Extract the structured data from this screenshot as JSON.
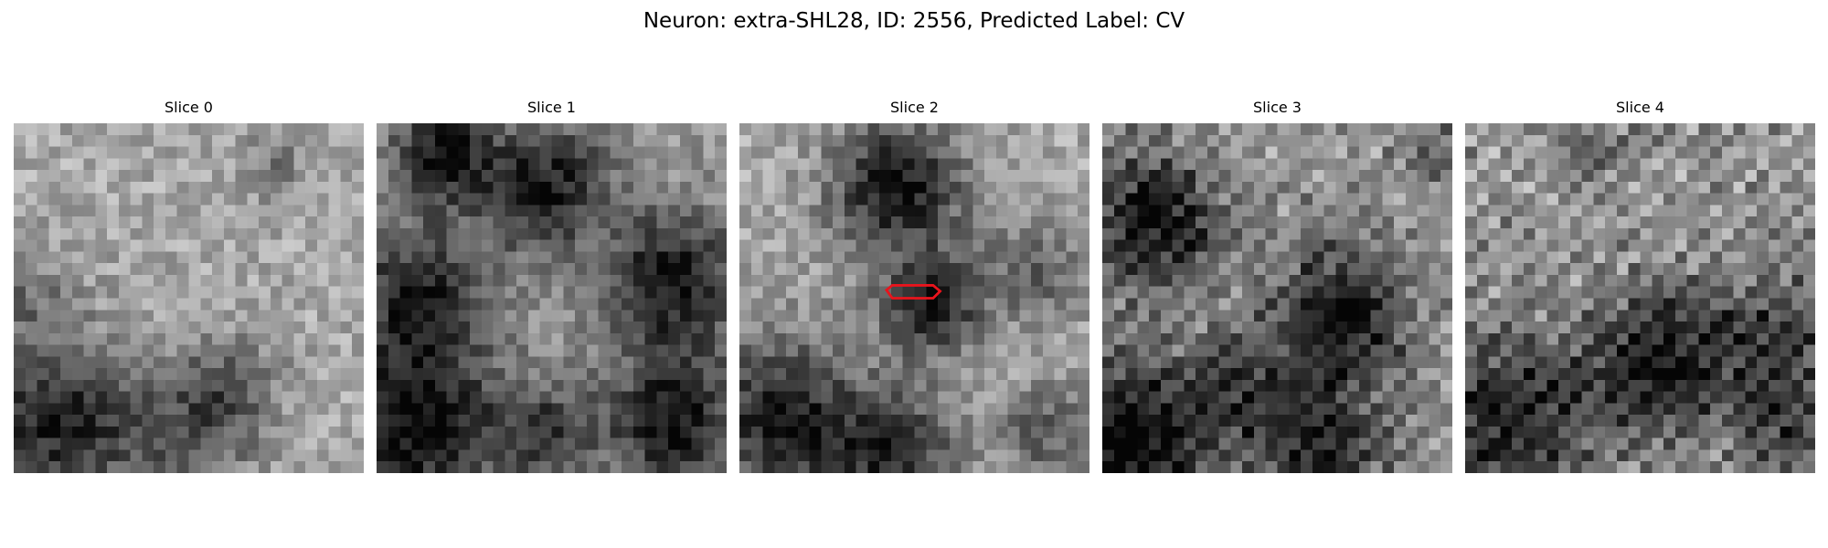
{
  "figure": {
    "title": "Neuron: extra-SHL28, ID: 2556, Predicted Label: CV"
  },
  "slices": [
    {
      "label": "Slice 0",
      "has_contour": false
    },
    {
      "label": "Slice 1",
      "has_contour": false
    },
    {
      "label": "Slice 2",
      "has_contour": true
    },
    {
      "label": "Slice 3",
      "has_contour": false
    },
    {
      "label": "Slice 4",
      "has_contour": false
    }
  ],
  "colors": {
    "colormap": "gray",
    "contour": "#e8141c",
    "background": "#ffffff"
  }
}
